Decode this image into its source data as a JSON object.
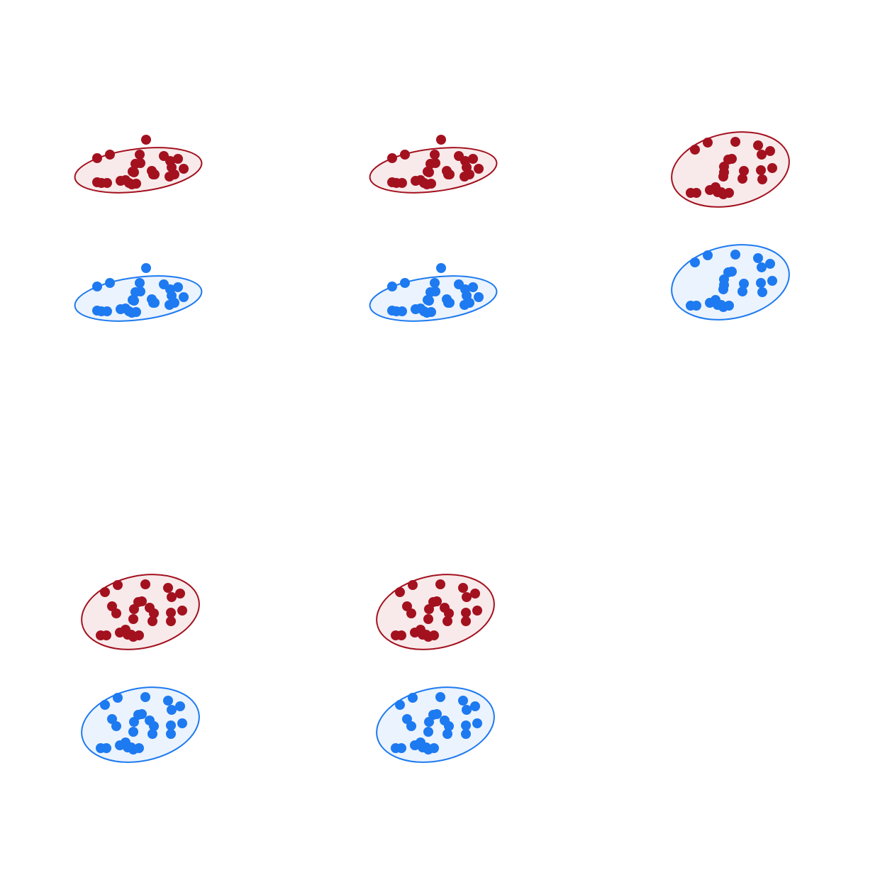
{
  "colors": {
    "background": "#ffffff",
    "red_stroke": "#a3111f",
    "red_fill": "#f8eaea",
    "red_dot": "#a3111f",
    "blue_stroke": "#1d7af0",
    "blue_fill": "#ebf3fe",
    "blue_dot": "#1d7af0"
  },
  "panels": [
    {
      "id": "panel-top-left",
      "clusters": [
        {
          "color": "red",
          "point_count": 26
        },
        {
          "color": "blue",
          "point_count": 26
        }
      ]
    },
    {
      "id": "panel-top-middle",
      "clusters": [
        {
          "color": "red",
          "point_count": 26
        },
        {
          "color": "blue",
          "point_count": 26
        }
      ]
    },
    {
      "id": "panel-top-right",
      "clusters": [
        {
          "color": "red",
          "point_count": 24
        },
        {
          "color": "blue",
          "point_count": 24
        }
      ]
    },
    {
      "id": "panel-bottom-left",
      "clusters": [
        {
          "color": "red",
          "point_count": 26
        },
        {
          "color": "blue",
          "point_count": 26
        }
      ]
    },
    {
      "id": "panel-bottom-middle",
      "clusters": [
        {
          "color": "red",
          "point_count": 26
        },
        {
          "color": "blue",
          "point_count": 26
        }
      ]
    }
  ]
}
